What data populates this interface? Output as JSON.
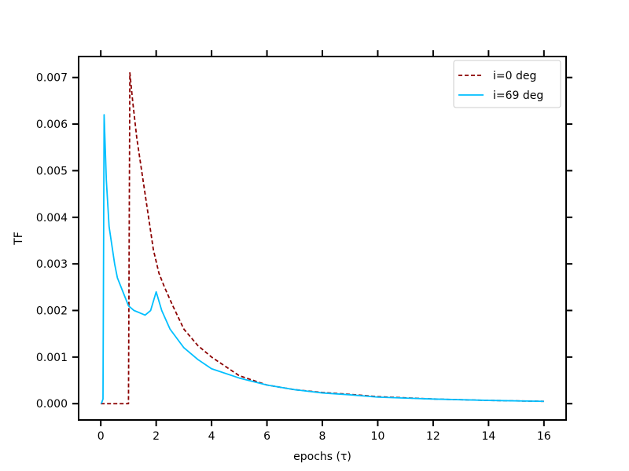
{
  "chart_data": {
    "type": "line",
    "title": "",
    "xlabel": "epochs (τ)",
    "ylabel": "TF",
    "xlim": [
      -0.8,
      16.8
    ],
    "ylim": [
      -0.00035,
      0.00745
    ],
    "x_ticks": [
      0,
      2,
      4,
      6,
      8,
      10,
      12,
      14,
      16
    ],
    "x_tick_labels": [
      "0",
      "2",
      "4",
      "6",
      "8",
      "10",
      "12",
      "14",
      "16"
    ],
    "y_ticks": [
      0.0,
      0.001,
      0.002,
      0.003,
      0.004,
      0.005,
      0.006,
      0.007
    ],
    "y_tick_labels": [
      "0.000",
      "0.001",
      "0.002",
      "0.003",
      "0.004",
      "0.005",
      "0.006",
      "0.007"
    ],
    "grid": false,
    "legend_position": "top-right",
    "series": [
      {
        "name": "i=0 deg",
        "color": "#8b0000",
        "style": "dashed",
        "points": [
          [
            0.0,
            0.0
          ],
          [
            1.0,
            0.0
          ],
          [
            1.0,
            1e-05
          ],
          [
            1.05,
            0.0071
          ],
          [
            1.15,
            0.0065
          ],
          [
            1.3,
            0.0057
          ],
          [
            1.5,
            0.0049
          ],
          [
            1.7,
            0.0041
          ],
          [
            1.9,
            0.0033
          ],
          [
            2.1,
            0.0028
          ],
          [
            2.3,
            0.0025
          ],
          [
            2.6,
            0.0021
          ],
          [
            3.0,
            0.0016
          ],
          [
            3.5,
            0.00125
          ],
          [
            4.0,
            0.001
          ],
          [
            4.5,
            0.0008
          ],
          [
            5.0,
            0.0006
          ],
          [
            6.0,
            0.0004
          ],
          [
            7.0,
            0.0003
          ],
          [
            8.0,
            0.00024
          ],
          [
            9.0,
            0.0002
          ],
          [
            10.0,
            0.00015
          ],
          [
            12.0,
            0.0001
          ],
          [
            14.0,
            7e-05
          ],
          [
            16.0,
            5e-05
          ]
        ]
      },
      {
        "name": "i=69 deg",
        "color": "#00bfff",
        "style": "solid",
        "points": [
          [
            0.02,
            0.0
          ],
          [
            0.08,
            0.0001
          ],
          [
            0.12,
            0.0062
          ],
          [
            0.2,
            0.0048
          ],
          [
            0.3,
            0.0038
          ],
          [
            0.4,
            0.0034
          ],
          [
            0.5,
            0.003
          ],
          [
            0.6,
            0.0027
          ],
          [
            0.8,
            0.0024
          ],
          [
            1.0,
            0.0021
          ],
          [
            1.2,
            0.002
          ],
          [
            1.4,
            0.00195
          ],
          [
            1.6,
            0.0019
          ],
          [
            1.8,
            0.002
          ],
          [
            2.0,
            0.0024
          ],
          [
            2.2,
            0.002
          ],
          [
            2.5,
            0.0016
          ],
          [
            3.0,
            0.0012
          ],
          [
            3.5,
            0.00095
          ],
          [
            4.0,
            0.00075
          ],
          [
            5.0,
            0.00055
          ],
          [
            6.0,
            0.0004
          ],
          [
            7.0,
            0.0003
          ],
          [
            8.0,
            0.00023
          ],
          [
            9.0,
            0.00019
          ],
          [
            10.0,
            0.00014
          ],
          [
            12.0,
            0.0001
          ],
          [
            14.0,
            7e-05
          ],
          [
            16.0,
            5e-05
          ]
        ]
      }
    ]
  }
}
